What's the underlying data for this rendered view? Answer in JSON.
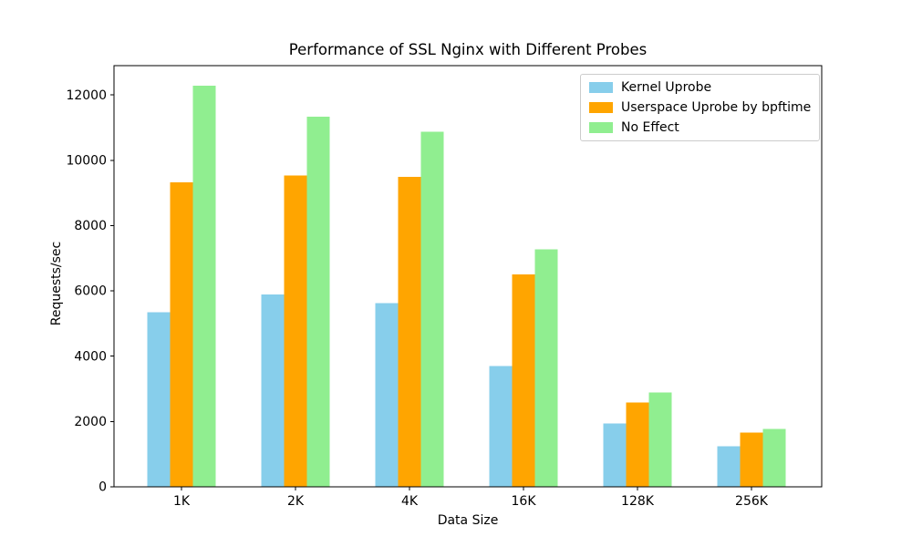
{
  "chart_data": {
    "type": "bar",
    "title": "Performance of SSL Nginx with Different Probes",
    "xlabel": "Data Size",
    "ylabel": "Requests/sec",
    "categories": [
      "1K",
      "2K",
      "4K",
      "16K",
      "128K",
      "256K"
    ],
    "series": [
      {
        "name": "Kernel Uprobe",
        "color": "#87CEEB",
        "values": [
          5350,
          5890,
          5630,
          3700,
          1940,
          1240
        ]
      },
      {
        "name": "Userspace Uprobe by bpftime",
        "color": "#FFA500",
        "values": [
          9320,
          9530,
          9500,
          6500,
          2580,
          1660
        ]
      },
      {
        "name": "No Effect",
        "color": "#90EE90",
        "values": [
          12290,
          11330,
          10870,
          7280,
          2890,
          1780
        ]
      }
    ],
    "ylim": [
      0,
      12900
    ],
    "yticks": [
      0,
      2000,
      4000,
      6000,
      8000,
      10000,
      12000
    ],
    "bar_width_fraction": 0.2,
    "legend_position": "upper right",
    "grid": false,
    "axis_color": "#000000",
    "legend_border_color": "#cccccc"
  }
}
